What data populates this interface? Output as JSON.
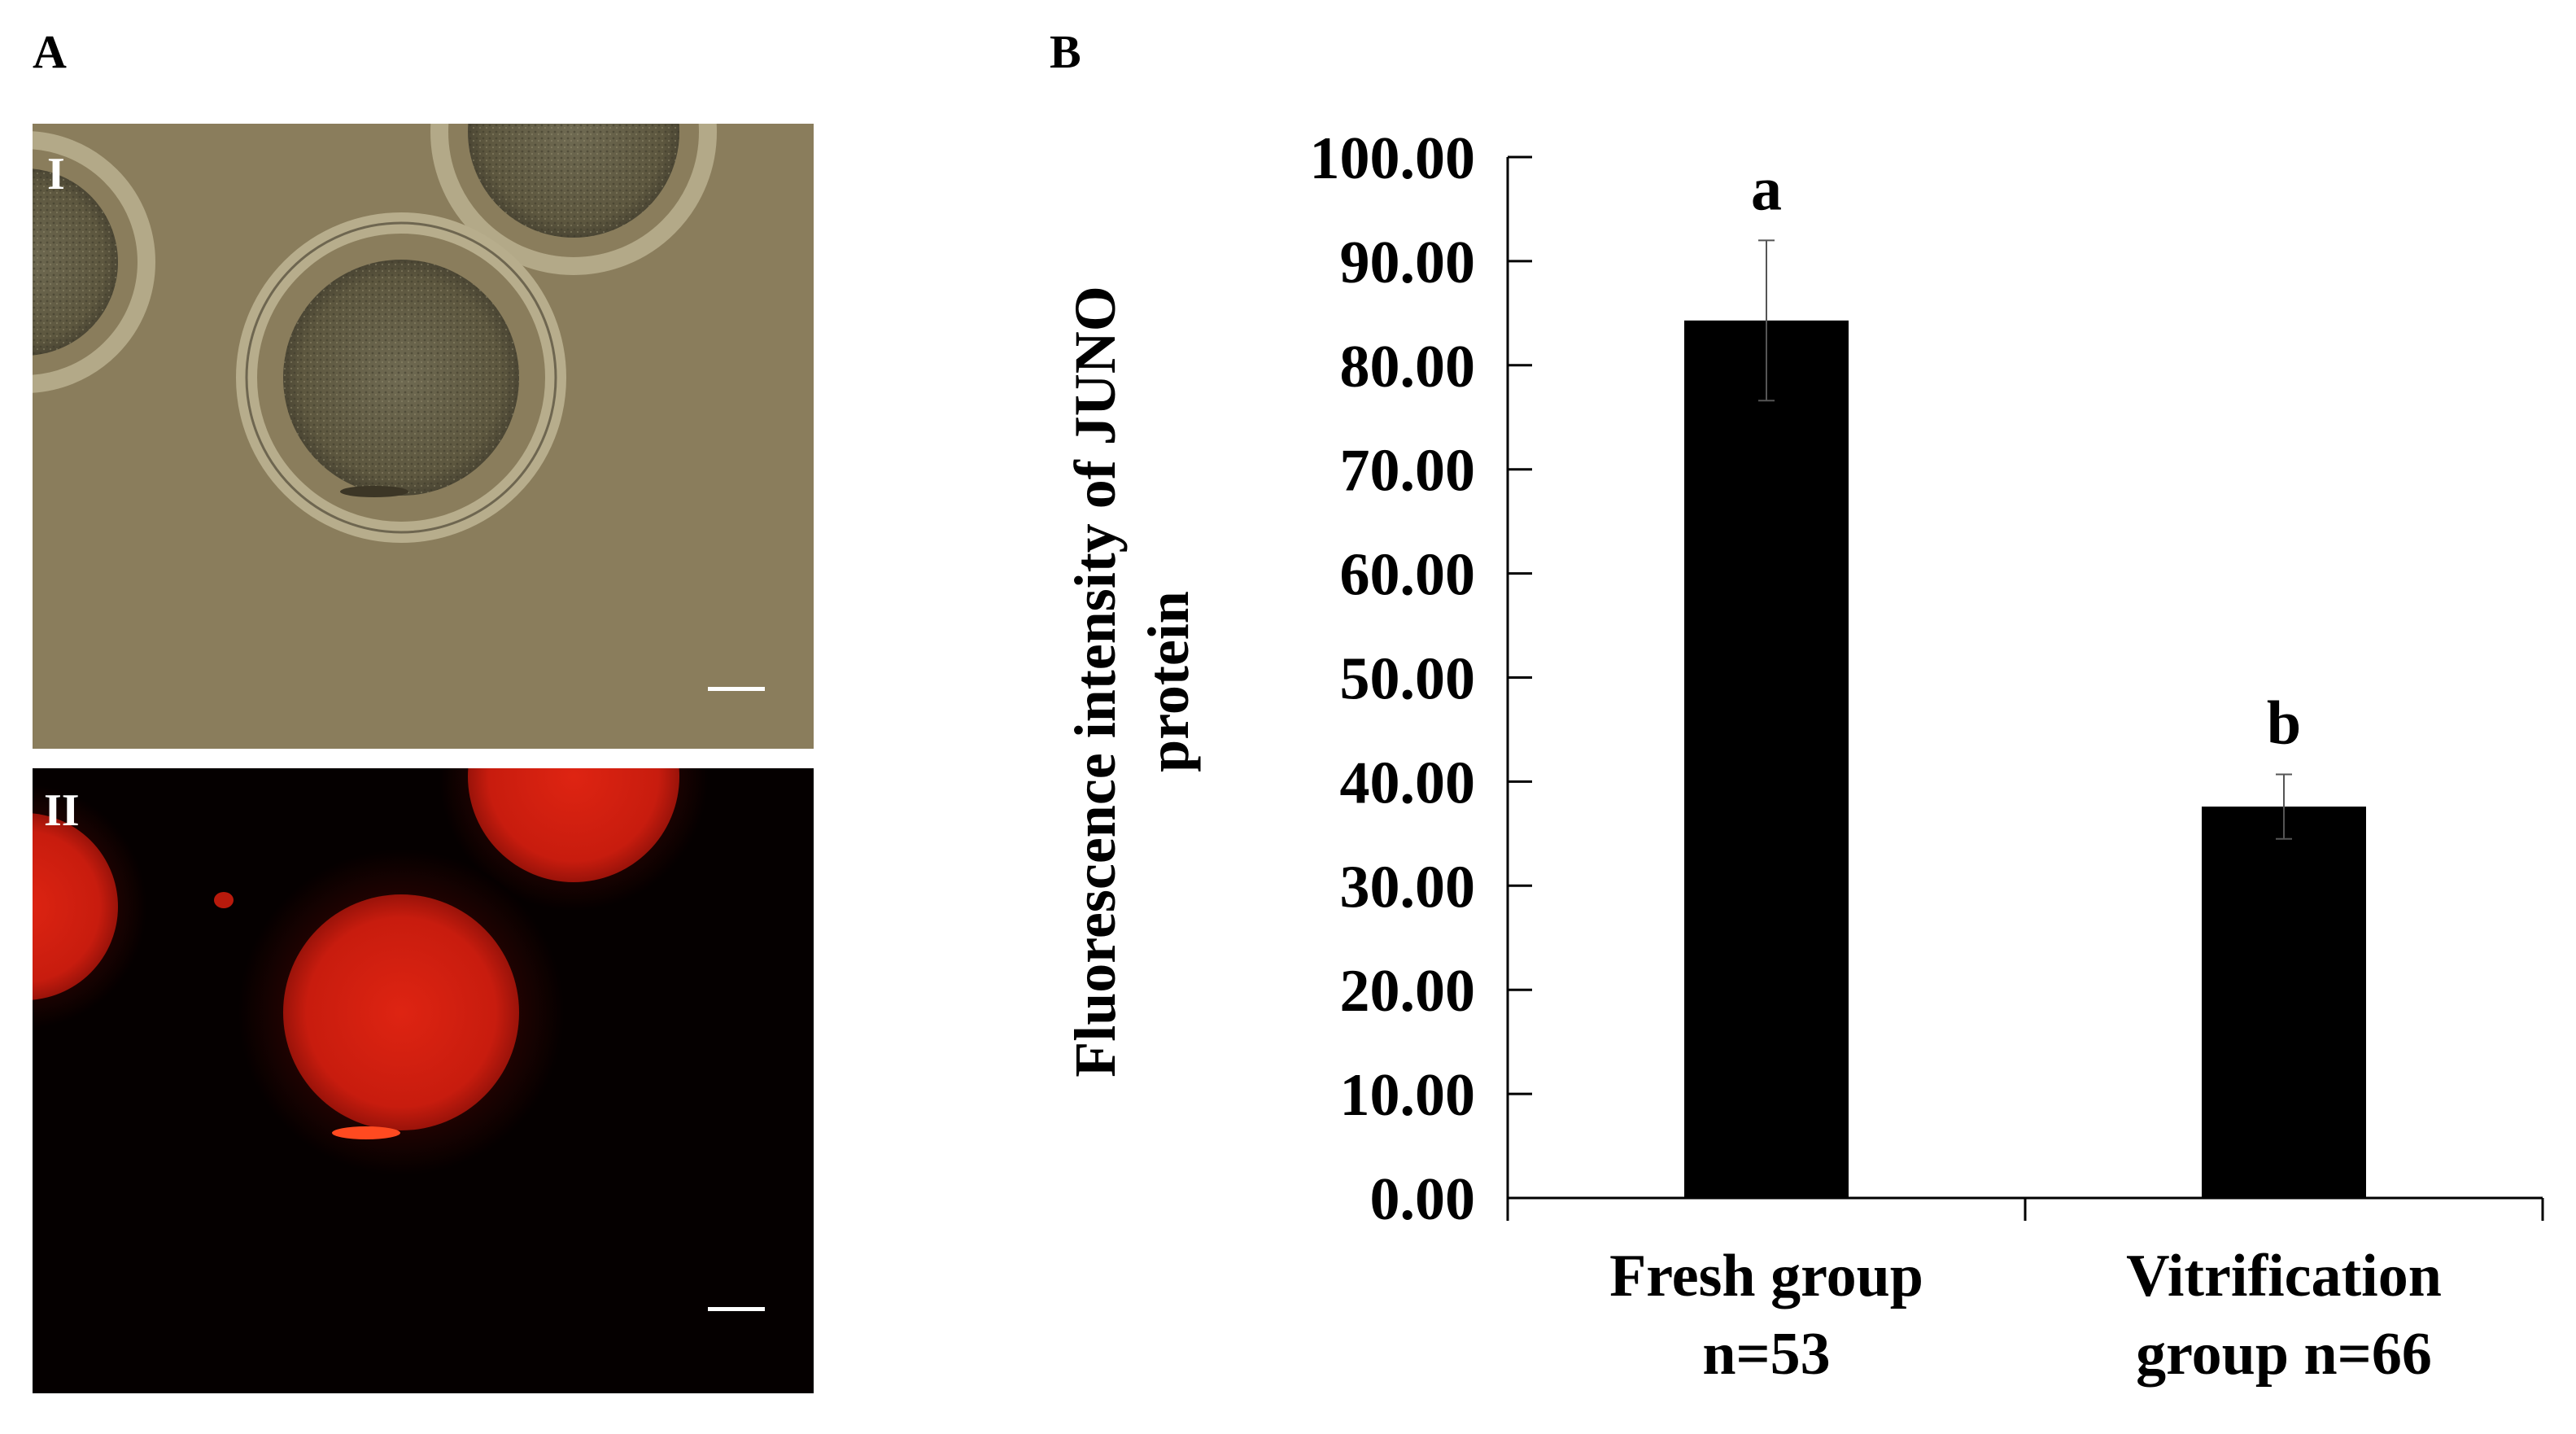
{
  "panel_a": {
    "letter": "A",
    "image_top_label": "I",
    "image_bottom_label": "II",
    "image_top_content": "brightfield micrograph of oocytes",
    "image_bottom_content": "red fluorescence micrograph of oocytes",
    "colors": {
      "brightfield_bg": "#8a7d5c",
      "fluorescence_bg": "#050000",
      "fluorescence_red": "#d81e10"
    }
  },
  "panel_b": {
    "letter": "B"
  },
  "chart_data": {
    "type": "bar",
    "title": "",
    "ylabel_lines": [
      "Fluorescence intensity of JUNO",
      "protein"
    ],
    "xlabel": "",
    "ylim": [
      0,
      100
    ],
    "yticks": [
      "0.00",
      "10.00",
      "20.00",
      "30.00",
      "40.00",
      "50.00",
      "60.00",
      "70.00",
      "80.00",
      "90.00",
      "100.00"
    ],
    "categories": [
      [
        "Fresh group",
        "n=53"
      ],
      [
        "Vitrification",
        "group n=66"
      ]
    ],
    "values": [
      84.3,
      37.6
    ],
    "error": [
      7.7,
      3.1
    ],
    "significance": [
      "a",
      "b"
    ],
    "bar_color": "#000000",
    "grid": false
  }
}
